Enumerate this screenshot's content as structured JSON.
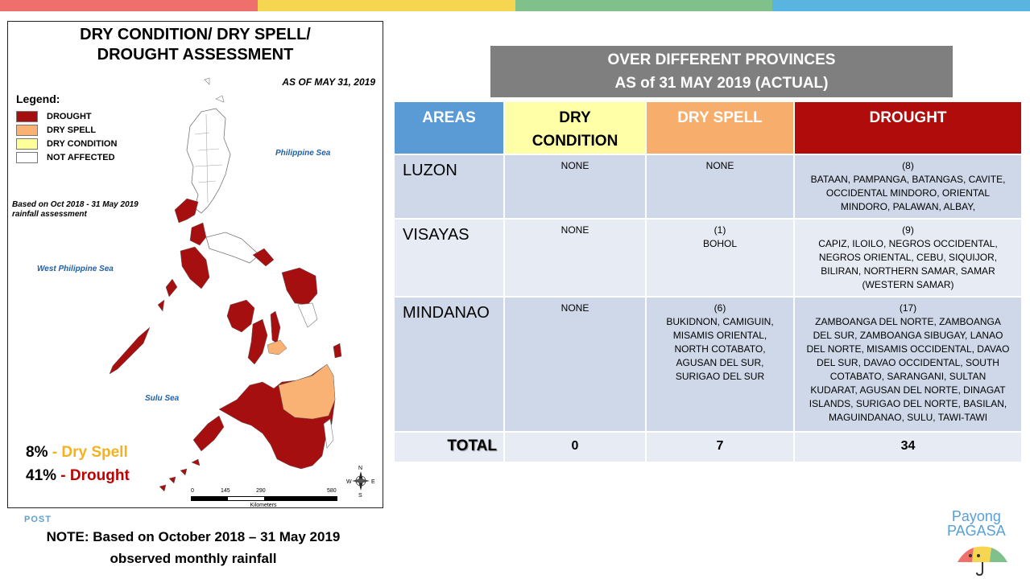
{
  "colors": {
    "drought": "#a50f0f",
    "dry_spell": "#f9b274",
    "dry_condition": "#ffff99",
    "not_affected": "#ffffff",
    "header_gray": "#7f7f7f",
    "areas_blue": "#5b9bd5",
    "dry_condition_header": "#ffffa8",
    "dry_spell_header": "#f7ad6b",
    "drought_header": "#b00c0c",
    "top_bar": [
      "#ef6f6c",
      "#f6d550",
      "#7fc08b",
      "#5ab4e0"
    ]
  },
  "map": {
    "title_line1": "DRY CONDITION/ DRY SPELL/",
    "title_line2": "DROUGHT ASSESSMENT",
    "as_of": "AS OF MAY 31, 2019",
    "legend_title": "Legend:",
    "legend": [
      {
        "label": "DROUGHT",
        "icon": "drought-swatch"
      },
      {
        "label": "DRY SPELL",
        "icon": "dry-spell-swatch"
      },
      {
        "label": "DRY CONDITION",
        "icon": "dry-condition-swatch"
      },
      {
        "label": "NOT AFFECTED",
        "icon": "not-affected-swatch"
      }
    ],
    "basis_line1": "Based on Oct 2018 - 31 May 2019",
    "basis_line2": "rainfall assessment",
    "sea_philippine": "Philippine Sea",
    "sea_west": "West Philippine Sea",
    "sea_sulu": "Sulu Sea",
    "pct_dry_spell_value": "8%",
    "pct_dry_spell_label": "Dry Spell",
    "pct_drought_value": "41%",
    "pct_drought_label": "Drought",
    "pct_sep": " - ",
    "scale_ticks": [
      "0",
      "145",
      "290",
      "580"
    ],
    "scale_unit": "Kilometers",
    "compass": {
      "n": "N",
      "s": "S",
      "e": "E",
      "w": "W"
    }
  },
  "post_label": "POST",
  "note_line1": "NOTE: Based on October 2018 – 31 May 2019",
  "note_line2": "observed monthly rainfall",
  "header": {
    "line1": "OVER DIFFERENT PROVINCES",
    "line2": "AS of 31 MAY 2019 (ACTUAL)"
  },
  "table": {
    "headers": {
      "areas": "AREAS",
      "dry_condition_1": "DRY",
      "dry_condition_2": "CONDITION",
      "dry_spell": "DRY SPELL",
      "drought": "DROUGHT"
    },
    "rows": [
      {
        "area": "LUZON",
        "dry_condition": [
          "NONE"
        ],
        "dry_spell": [
          "NONE"
        ],
        "drought": [
          "(8)",
          "BATAAN, PAMPANGA, BATANGAS, CAVITE,",
          "OCCIDENTAL MINDORO, ORIENTAL",
          "MINDORO, PALAWAN, ALBAY,"
        ]
      },
      {
        "area": "VISAYAS",
        "dry_condition": [
          "NONE"
        ],
        "dry_spell": [
          "(1)",
          "BOHOL"
        ],
        "drought": [
          "(9)",
          "CAPIZ, ILOILO, NEGROS OCCIDENTAL,",
          "NEGROS ORIENTAL, CEBU, SIQUIJOR,",
          "BILIRAN, NORTHERN SAMAR, SAMAR",
          "(WESTERN SAMAR)"
        ]
      },
      {
        "area": "MINDANAO",
        "dry_condition": [
          "NONE"
        ],
        "dry_spell": [
          "(6)",
          "BUKIDNON, CAMIGUIN,",
          "MISAMIS ORIENTAL,",
          "NORTH COTABATO,",
          "AGUSAN DEL SUR,",
          "SURIGAO DEL SUR"
        ],
        "drought": [
          "(17)",
          "ZAMBOANGA DEL NORTE, ZAMBOANGA",
          "DEL SUR, ZAMBOANGA SIBUGAY, LANAO",
          "DEL NORTE, MISAMIS OCCIDENTAL, DAVAO",
          "DEL SUR, DAVAO OCCIDENTAL, SOUTH",
          "COTABATO, SARANGANI, SULTAN",
          "KUDARAT, AGUSAN DEL NORTE, DINAGAT",
          "ISLANDS, SURIGAO DEL NORTE, BASILAN,",
          "MAGUINDANAO, SULU, TAWI-TAWI"
        ]
      }
    ],
    "total": {
      "label": "TOTAL",
      "dry_condition": "0",
      "dry_spell": "7",
      "drought": "34"
    }
  },
  "logo": {
    "line1": "Payong",
    "line2": "PAGASA",
    "icon": "umbrella-icon"
  }
}
